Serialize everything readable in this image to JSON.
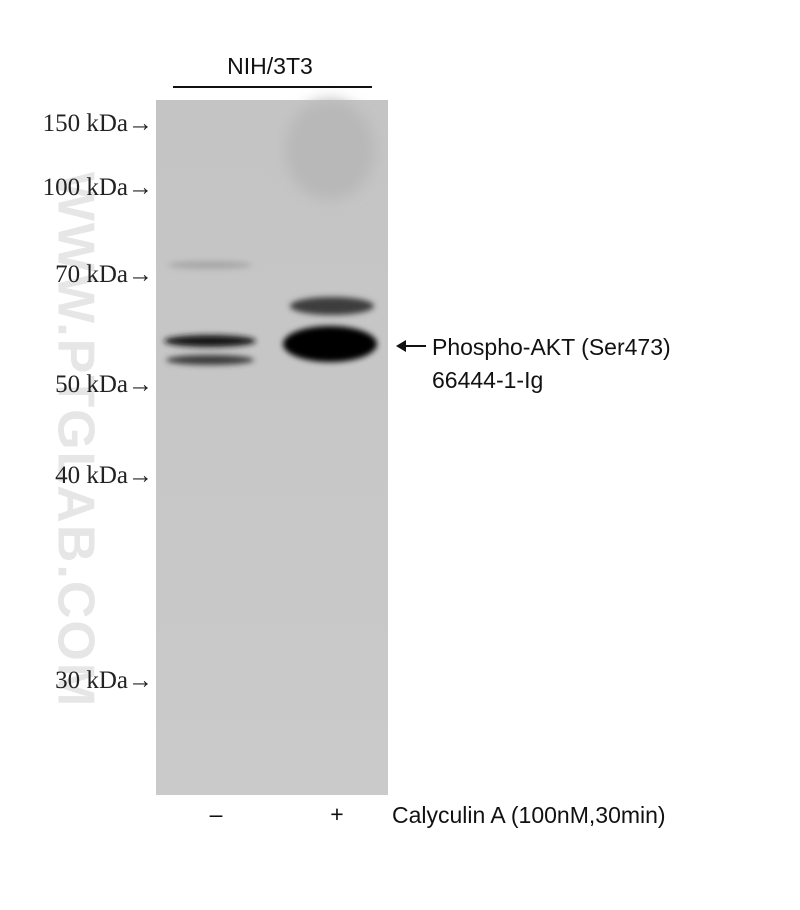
{
  "sample": "NIH/3T3",
  "markers": [
    "150 kDa→",
    "100 kDa→",
    "70 kDa→",
    "50 kDa→",
    "40 kDa→",
    "30 kDa→"
  ],
  "target": {
    "name": "Phospho-AKT (Ser473)",
    "catalog": "66444-1-Ig"
  },
  "lanes": [
    "–",
    "+"
  ],
  "treatment": "Calyculin A (100nM,30min)",
  "watermark": "WWW.PTGLAB.COM"
}
